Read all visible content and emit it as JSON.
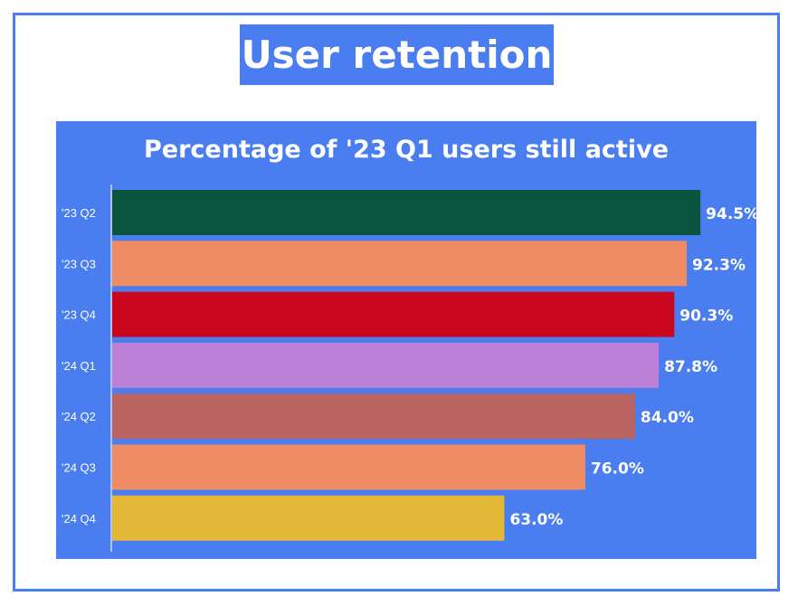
{
  "header": {
    "title": "User retention"
  },
  "chart_data": {
    "type": "bar",
    "orientation": "horizontal",
    "title": "Percentage of '23 Q1 users still active",
    "categories": [
      "'23 Q2",
      "'23 Q3",
      "'23 Q4",
      "'24 Q1",
      "'24 Q2",
      "'24 Q3",
      "'24 Q4"
    ],
    "values": [
      94.5,
      92.3,
      90.3,
      87.8,
      84.0,
      76.0,
      63.0
    ],
    "value_labels": [
      "94.5%",
      "92.3%",
      "90.3%",
      "87.8%",
      "84.0%",
      "76.0%",
      "63.0%"
    ],
    "colors": [
      "#0b5440",
      "#ef8c63",
      "#c9061e",
      "#bd80d8",
      "#b96461",
      "#ef8c63",
      "#e3b837"
    ],
    "xlim": [
      0,
      100
    ],
    "grid": false,
    "legend": "none",
    "background": "#4a7ef0"
  }
}
